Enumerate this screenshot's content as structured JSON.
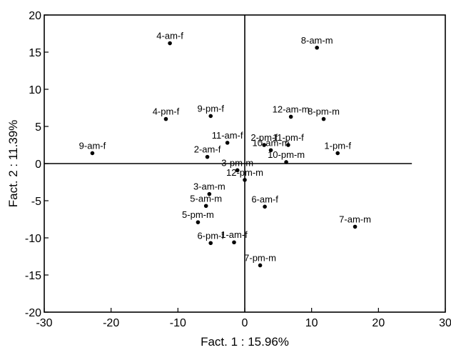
{
  "chart_data": {
    "type": "scatter",
    "title": "",
    "xlabel": "Fact. 1 : 15.96%",
    "ylabel": "Fact. 2 : 11.39%",
    "xlim": [
      -30,
      30
    ],
    "ylim": [
      -20,
      20
    ],
    "x_ticks": [
      -30,
      -20,
      -10,
      0,
      10,
      20,
      30
    ],
    "y_ticks": [
      -20,
      -15,
      -10,
      -5,
      0,
      5,
      10,
      15,
      20
    ],
    "grid": false,
    "legend": "none",
    "zero_lines": true,
    "zero_line_x_extent": [
      -30,
      25
    ],
    "marker_color": "#000000",
    "points": [
      {
        "label": "4-am-f",
        "x": -11.2,
        "y": 16.2
      },
      {
        "label": "8-am-m",
        "x": 10.8,
        "y": 15.6
      },
      {
        "label": "4-pm-f",
        "x": -11.8,
        "y": 6.0
      },
      {
        "label": "9-pm-f",
        "x": -5.1,
        "y": 6.4
      },
      {
        "label": "12-am-m",
        "x": 6.9,
        "y": 6.3
      },
      {
        "label": "8-pm-m",
        "x": 11.8,
        "y": 6.0
      },
      {
        "label": "11-am-f",
        "x": -2.6,
        "y": 2.8
      },
      {
        "label": "2-pm-f",
        "x": 2.9,
        "y": 2.5
      },
      {
        "label": "11-pm-f",
        "x": 6.5,
        "y": 2.5
      },
      {
        "label": "10-am-m",
        "x": 3.9,
        "y": 1.8
      },
      {
        "label": "1-pm-f",
        "x": 13.9,
        "y": 1.4
      },
      {
        "label": "9-am-f",
        "x": -22.8,
        "y": 1.4
      },
      {
        "label": "2-am-f",
        "x": -5.6,
        "y": 0.9
      },
      {
        "label": "10-pm-m",
        "x": 6.2,
        "y": 0.2
      },
      {
        "label": "3-pm-m",
        "x": -1.1,
        "y": -0.9
      },
      {
        "label": "12-pm-m",
        "x": 0.0,
        "y": -2.2
      },
      {
        "label": "3-am-m",
        "x": -5.3,
        "y": -4.1
      },
      {
        "label": "5-am-m",
        "x": -5.8,
        "y": -5.7
      },
      {
        "label": "6-am-f",
        "x": 3.0,
        "y": -5.8
      },
      {
        "label": "5-pm-m",
        "x": -7.0,
        "y": -7.9
      },
      {
        "label": "7-am-m",
        "x": 16.5,
        "y": -8.5
      },
      {
        "label": "6-pm-f",
        "x": -5.1,
        "y": -10.7
      },
      {
        "label": "1-am-f",
        "x": -1.6,
        "y": -10.6
      },
      {
        "label": "7-pm-m",
        "x": 2.3,
        "y": -13.7
      }
    ]
  }
}
